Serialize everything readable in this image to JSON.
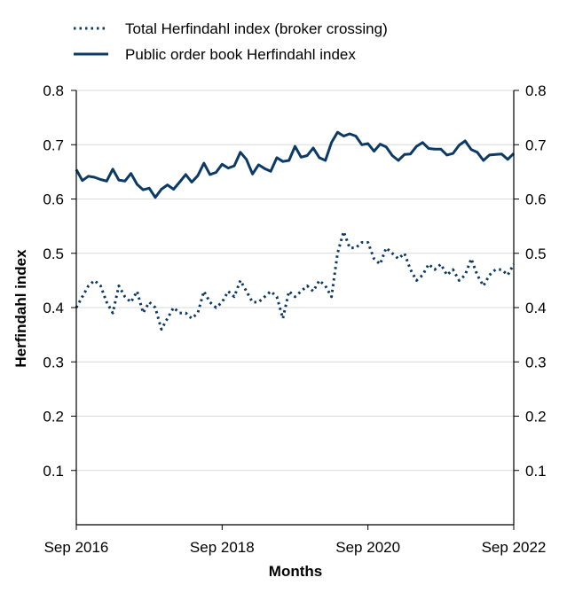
{
  "chart_data": {
    "type": "line",
    "xlabel": "Months",
    "ylabel": "Herfindahl index",
    "xlim": [
      "2016-09",
      "2022-09"
    ],
    "ylim": [
      0.0,
      0.8
    ],
    "x_ticks": [
      "Sep 2016",
      "Sep 2018",
      "Sep 2020",
      "Sep 2022"
    ],
    "y_ticks": [
      "0.1",
      "0.2",
      "0.3",
      "0.4",
      "0.5",
      "0.6",
      "0.7",
      "0.8"
    ],
    "grid": "horizontal",
    "legend_position": "top-left",
    "series_color": "#0b3a66",
    "series": [
      {
        "name": "Total Herfindahl index (broker crossing)",
        "style": "dotted",
        "x": [
          "2016-09",
          "2016-10",
          "2016-11",
          "2016-12",
          "2017-01",
          "2017-02",
          "2017-03",
          "2017-04",
          "2017-05",
          "2017-06",
          "2017-07",
          "2017-08",
          "2017-09",
          "2017-10",
          "2017-11",
          "2017-12",
          "2018-01",
          "2018-02",
          "2018-03",
          "2018-04",
          "2018-05",
          "2018-06",
          "2018-07",
          "2018-08",
          "2018-09",
          "2018-10",
          "2018-11",
          "2018-12",
          "2019-01",
          "2019-02",
          "2019-03",
          "2019-04",
          "2019-05",
          "2019-06",
          "2019-07",
          "2019-08",
          "2019-09",
          "2019-10",
          "2019-11",
          "2019-12",
          "2020-01",
          "2020-02",
          "2020-03",
          "2020-04",
          "2020-05",
          "2020-06",
          "2020-07",
          "2020-08",
          "2020-09",
          "2020-10",
          "2020-11",
          "2020-12",
          "2021-01",
          "2021-02",
          "2021-03",
          "2021-04",
          "2021-05",
          "2021-06",
          "2021-07",
          "2021-08",
          "2021-09",
          "2021-10",
          "2021-11",
          "2021-12",
          "2022-01",
          "2022-02",
          "2022-03",
          "2022-04",
          "2022-05",
          "2022-06",
          "2022-07",
          "2022-08",
          "2022-09"
        ],
        "values": [
          0.4,
          0.42,
          0.44,
          0.45,
          0.44,
          0.41,
          0.39,
          0.44,
          0.42,
          0.41,
          0.43,
          0.39,
          0.41,
          0.4,
          0.36,
          0.38,
          0.4,
          0.39,
          0.39,
          0.38,
          0.39,
          0.43,
          0.41,
          0.4,
          0.41,
          0.43,
          0.42,
          0.45,
          0.43,
          0.41,
          0.41,
          0.42,
          0.43,
          0.42,
          0.38,
          0.43,
          0.42,
          0.43,
          0.44,
          0.43,
          0.45,
          0.44,
          0.42,
          0.5,
          0.54,
          0.51,
          0.51,
          0.52,
          0.52,
          0.49,
          0.48,
          0.51,
          0.5,
          0.49,
          0.5,
          0.47,
          0.45,
          0.46,
          0.48,
          0.47,
          0.48,
          0.46,
          0.47,
          0.45,
          0.46,
          0.49,
          0.46,
          0.44,
          0.46,
          0.47,
          0.47,
          0.46,
          0.48
        ]
      },
      {
        "name": "Public order book Herfindahl index",
        "style": "solid",
        "x": [
          "2016-09",
          "2016-10",
          "2016-11",
          "2016-12",
          "2017-01",
          "2017-02",
          "2017-03",
          "2017-04",
          "2017-05",
          "2017-06",
          "2017-07",
          "2017-08",
          "2017-09",
          "2017-10",
          "2017-11",
          "2017-12",
          "2018-01",
          "2018-02",
          "2018-03",
          "2018-04",
          "2018-05",
          "2018-06",
          "2018-07",
          "2018-08",
          "2018-09",
          "2018-10",
          "2018-11",
          "2018-12",
          "2019-01",
          "2019-02",
          "2019-03",
          "2019-04",
          "2019-05",
          "2019-06",
          "2019-07",
          "2019-08",
          "2019-09",
          "2019-10",
          "2019-11",
          "2019-12",
          "2020-01",
          "2020-02",
          "2020-03",
          "2020-04",
          "2020-05",
          "2020-06",
          "2020-07",
          "2020-08",
          "2020-09",
          "2020-10",
          "2020-11",
          "2020-12",
          "2021-01",
          "2021-02",
          "2021-03",
          "2021-04",
          "2021-05",
          "2021-06",
          "2021-07",
          "2021-08",
          "2021-09",
          "2021-10",
          "2021-11",
          "2021-12",
          "2022-01",
          "2022-02",
          "2022-03",
          "2022-04",
          "2022-05",
          "2022-06",
          "2022-07",
          "2022-08",
          "2022-09"
        ],
        "values": [
          0.654,
          0.634,
          0.642,
          0.64,
          0.636,
          0.633,
          0.655,
          0.635,
          0.633,
          0.647,
          0.627,
          0.617,
          0.62,
          0.603,
          0.618,
          0.626,
          0.618,
          0.631,
          0.645,
          0.631,
          0.643,
          0.666,
          0.645,
          0.649,
          0.664,
          0.657,
          0.661,
          0.686,
          0.673,
          0.646,
          0.663,
          0.656,
          0.651,
          0.676,
          0.669,
          0.671,
          0.697,
          0.677,
          0.68,
          0.694,
          0.676,
          0.671,
          0.704,
          0.723,
          0.716,
          0.72,
          0.716,
          0.7,
          0.702,
          0.688,
          0.701,
          0.696,
          0.68,
          0.671,
          0.682,
          0.683,
          0.697,
          0.704,
          0.693,
          0.692,
          0.692,
          0.681,
          0.684,
          0.699,
          0.707,
          0.691,
          0.686,
          0.671,
          0.681,
          0.682,
          0.683,
          0.673,
          0.684
        ]
      }
    ]
  }
}
